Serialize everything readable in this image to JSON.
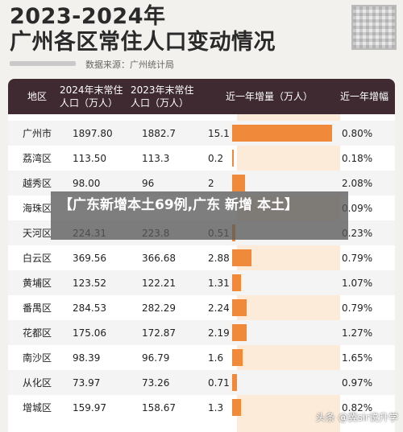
{
  "title_line1": "2023-2024年",
  "title_line2": "广州各区常住人口变动情况",
  "source": "数据来源：广州统计局",
  "overlay_text": "【广东新增本土69例,广东 新增 本土】",
  "watermark": "头条 @冀sir说升学",
  "chart_data": {
    "type": "table",
    "title": "2023-2024年 广州各区常住人口变动情况",
    "columns": [
      "地区",
      "2024年末常住人口（万人）",
      "2023年末常住人口（万人）",
      "近一年增量（万人）",
      "近一年增幅"
    ],
    "categories": [
      "广州市",
      "荔湾区",
      "越秀区",
      "海珠区",
      "天河区",
      "白云区",
      "黄埔区",
      "番禺区",
      "花都区",
      "南沙区",
      "从化区",
      "增城区"
    ],
    "pop_2024": [
      "1897.80",
      "113.50",
      "98.00",
      "",
      "224.31",
      "369.56",
      "123.52",
      "284.53",
      "175.06",
      "98.39",
      "73.97",
      "159.97"
    ],
    "pop_2023": [
      "1882.7",
      "113.3",
      "96",
      "",
      "223.8",
      "366.68",
      "122.21",
      "282.29",
      "172.87",
      "96.79",
      "73.26",
      "158.67"
    ],
    "increase": [
      15.1,
      0.2,
      2,
      null,
      0.51,
      2.88,
      1.31,
      2.24,
      2.19,
      1.6,
      0.71,
      1.3
    ],
    "increase_label": [
      "15.1",
      "0.2",
      "2",
      "",
      "0.51",
      "2.88",
      "1.31",
      "2.24",
      "2.19",
      "1.6",
      "0.71",
      "1.3"
    ],
    "growth": [
      "0.80%",
      "0.18%",
      "2.08%",
      "0.09%",
      "0.23%",
      "0.79%",
      "1.07%",
      "0.79%",
      "1.27%",
      "1.65%",
      "0.97%",
      "0.82%"
    ],
    "bar_color": "#f0893a",
    "xlim": [
      0,
      15.1
    ]
  }
}
